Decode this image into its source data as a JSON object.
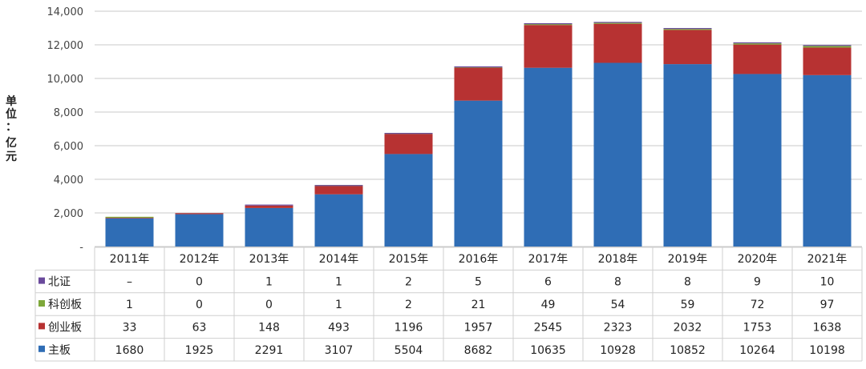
{
  "chart_data": {
    "type": "bar",
    "stacked": true,
    "ylabel_chars": [
      "单",
      "位",
      "：",
      "亿",
      "元"
    ],
    "ylim": [
      0,
      14000
    ],
    "yticks": [
      0,
      2000,
      4000,
      6000,
      8000,
      10000,
      12000,
      14000
    ],
    "ytick_labels": [
      "-",
      "2,000",
      "4,000",
      "6,000",
      "8,000",
      "10,000",
      "12,000",
      "14,000"
    ],
    "categories": [
      "2011年",
      "2012年",
      "2013年",
      "2014年",
      "2015年",
      "2016年",
      "2017年",
      "2018年",
      "2019年",
      "2020年",
      "2021年"
    ],
    "grid": true,
    "legend": "table-left",
    "series": [
      {
        "name": "主板",
        "color": "#2f6db5",
        "values": [
          1680,
          1925,
          2291,
          3107,
          5504,
          8682,
          10635,
          10928,
          10852,
          10264,
          10198
        ],
        "labels": [
          "1680",
          "1925",
          "2291",
          "3107",
          "5504",
          "8682",
          "10635",
          "10928",
          "10852",
          "10264",
          "10198"
        ]
      },
      {
        "name": "创业板",
        "color": "#b73232",
        "values": [
          33,
          63,
          148,
          493,
          1196,
          1957,
          2545,
          2323,
          2032,
          1753,
          1638
        ],
        "labels": [
          "33",
          "63",
          "148",
          "493",
          "1196",
          "1957",
          "2545",
          "2323",
          "2032",
          "1753",
          "1638"
        ]
      },
      {
        "name": "科创板",
        "color": "#7ea83a",
        "values": [
          1,
          0,
          0,
          1,
          2,
          21,
          49,
          54,
          59,
          72,
          97
        ],
        "labels": [
          "1",
          "0",
          "0",
          "1",
          "2",
          "21",
          "49",
          "54",
          "59",
          "72",
          "97"
        ]
      },
      {
        "name": "北证",
        "color": "#6a4a9c",
        "values": [
          0,
          0,
          1,
          1,
          2,
          5,
          6,
          8,
          8,
          9,
          10
        ],
        "labels": [
          "–",
          "0",
          "1",
          "1",
          "2",
          "5",
          "6",
          "8",
          "8",
          "9",
          "10"
        ]
      }
    ]
  }
}
